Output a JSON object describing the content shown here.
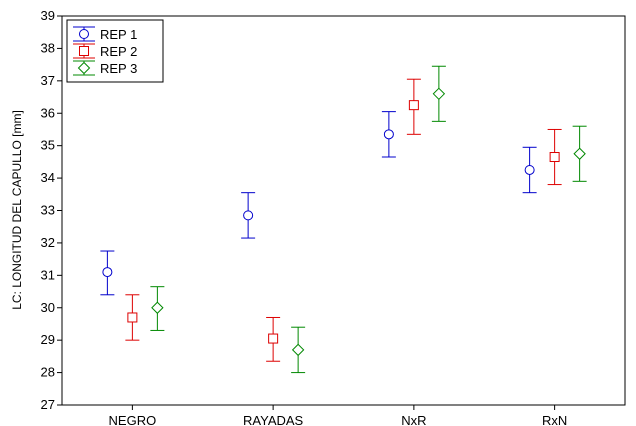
{
  "chart_data": {
    "type": "scatter",
    "subtype": "error-bar",
    "categories": [
      "NEGRO",
      "RAYADAS",
      "NxR",
      "RxN"
    ],
    "ylabel": "LC: LONGITUD DEL CAPULLO [mm]",
    "xlabel": "",
    "ylim": [
      27,
      39
    ],
    "yticks": [
      27,
      28,
      29,
      30,
      31,
      32,
      33,
      34,
      35,
      36,
      37,
      38,
      39
    ],
    "grid": false,
    "legend_position": "top-left",
    "series": [
      {
        "name": "REP 1",
        "color": "#0000cc",
        "marker": "circle",
        "values": [
          31.1,
          32.85,
          35.35,
          34.25
        ],
        "lower": [
          30.4,
          32.15,
          34.65,
          33.55
        ],
        "upper": [
          31.75,
          33.55,
          36.05,
          34.95
        ]
      },
      {
        "name": "REP 2",
        "color": "#dd0000",
        "marker": "square",
        "values": [
          29.7,
          29.05,
          36.25,
          34.65
        ],
        "lower": [
          29.0,
          28.35,
          35.35,
          33.8
        ],
        "upper": [
          30.4,
          29.7,
          37.05,
          35.5
        ]
      },
      {
        "name": "REP 3",
        "color": "#008800",
        "marker": "diamond",
        "values": [
          30.0,
          28.7,
          36.6,
          34.75
        ],
        "lower": [
          29.3,
          28.0,
          35.75,
          33.9
        ],
        "upper": [
          30.65,
          29.4,
          37.45,
          35.6
        ]
      }
    ]
  }
}
